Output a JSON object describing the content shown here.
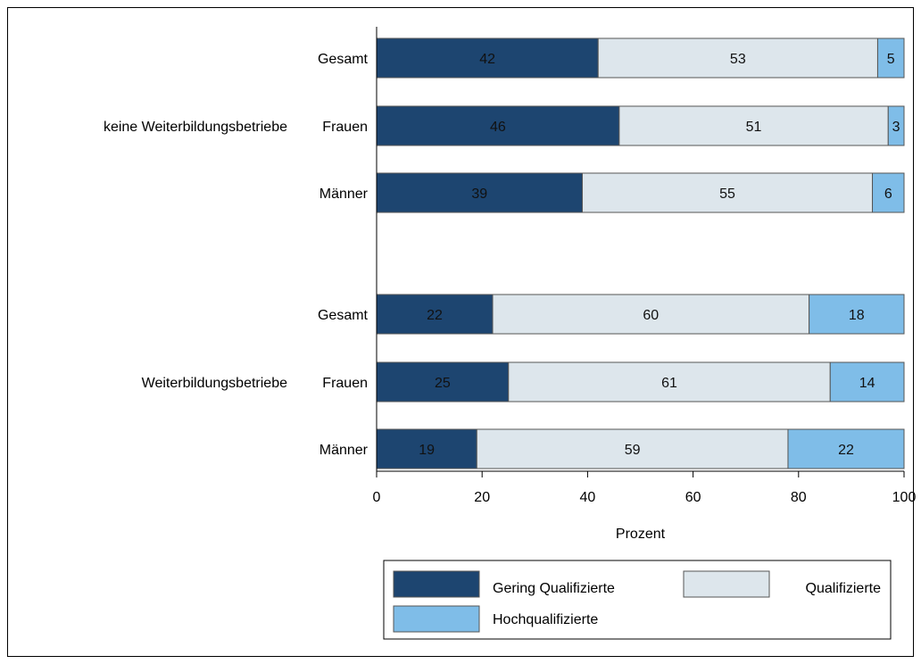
{
  "chart_data": {
    "type": "bar",
    "orientation": "horizontal",
    "stacked": true,
    "xlabel": "Prozent",
    "xlim": [
      0,
      100
    ],
    "xticks": [
      0,
      20,
      40,
      60,
      80,
      100
    ],
    "groups": [
      {
        "label": "keine Weiterbildungsbetriebe",
        "rows": [
          {
            "label": "Gesamt",
            "values": [
              42,
              53,
              5
            ]
          },
          {
            "label": "Frauen",
            "values": [
              46,
              51,
              3
            ]
          },
          {
            "label": "Männer",
            "values": [
              39,
              55,
              6
            ]
          }
        ]
      },
      {
        "label": "Weiterbildungsbetriebe",
        "rows": [
          {
            "label": "Gesamt",
            "values": [
              22,
              60,
              18
            ]
          },
          {
            "label": "Frauen",
            "values": [
              25,
              61,
              14
            ]
          },
          {
            "label": "Männer",
            "values": [
              19,
              59,
              22
            ]
          }
        ]
      }
    ],
    "series": [
      {
        "name": "Gering Qualifizierte",
        "color": "#1d4570"
      },
      {
        "name": "Qualifizierte",
        "color": "#dde6ec"
      },
      {
        "name": "Hochqualifizierte",
        "color": "#7fbde8"
      }
    ],
    "legend": "bottom",
    "grid": false
  }
}
